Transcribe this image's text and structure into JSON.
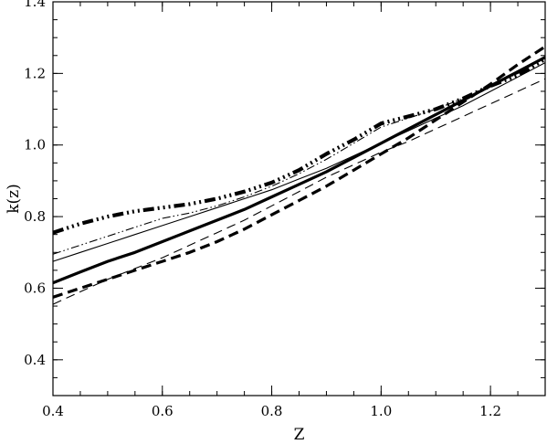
{
  "chart_data": {
    "type": "line",
    "title": "",
    "xlabel": "Z",
    "ylabel": "k(z)",
    "xlim": [
      0.4,
      1.3
    ],
    "ylim": [
      0.3,
      1.4
    ],
    "grid": false,
    "legend": "none",
    "x_ticks": [
      0.4,
      0.6,
      0.8,
      1.0,
      1.2
    ],
    "x_tick_labels": [
      "0.4",
      "0.6",
      "0.8",
      "1.0",
      "1.2"
    ],
    "y_ticks": [
      0.4,
      0.6,
      0.8,
      1.0,
      1.2,
      1.4
    ],
    "y_tick_labels": [
      "0.4",
      "0.6",
      "0.8",
      "1.0",
      "1.2",
      "1.4"
    ],
    "series": [
      {
        "style": "thick-dash-dot-dot",
        "x": [
          0.4,
          0.45,
          0.5,
          0.55,
          0.6,
          0.65,
          0.7,
          0.75,
          0.8,
          0.85,
          0.9,
          0.95,
          1.0,
          1.05,
          1.1,
          1.15,
          1.2,
          1.25,
          1.3
        ],
        "y": [
          0.755,
          0.78,
          0.8,
          0.815,
          0.825,
          0.835,
          0.85,
          0.87,
          0.895,
          0.93,
          0.975,
          1.015,
          1.06,
          1.08,
          1.1,
          1.13,
          1.165,
          1.195,
          1.24
        ]
      },
      {
        "style": "thin-dash-dot-dot",
        "x": [
          0.4,
          0.45,
          0.5,
          0.55,
          0.6,
          0.65,
          0.7,
          0.75,
          0.8,
          0.85,
          0.9,
          0.95,
          1.0,
          1.05,
          1.1,
          1.15,
          1.2,
          1.25,
          1.3
        ],
        "y": [
          0.695,
          0.72,
          0.745,
          0.77,
          0.795,
          0.81,
          0.83,
          0.855,
          0.885,
          0.92,
          0.96,
          1.005,
          1.05,
          1.075,
          1.1,
          1.13,
          1.165,
          1.2,
          1.245
        ]
      },
      {
        "style": "thin-solid",
        "x": [
          0.4,
          0.45,
          0.5,
          0.55,
          0.6,
          0.65,
          0.7,
          0.75,
          0.8,
          0.85,
          0.9,
          0.95,
          1.0,
          1.05,
          1.1,
          1.15,
          1.2,
          1.25,
          1.3
        ],
        "y": [
          0.675,
          0.7,
          0.725,
          0.75,
          0.775,
          0.8,
          0.825,
          0.85,
          0.875,
          0.905,
          0.935,
          0.97,
          1.005,
          1.04,
          1.075,
          1.11,
          1.15,
          1.19,
          1.23
        ]
      },
      {
        "style": "thick-solid",
        "x": [
          0.4,
          0.45,
          0.5,
          0.55,
          0.6,
          0.65,
          0.7,
          0.75,
          0.8,
          0.85,
          0.9,
          0.95,
          1.0,
          1.05,
          1.1,
          1.15,
          1.2,
          1.25,
          1.3
        ],
        "y": [
          0.615,
          0.645,
          0.675,
          0.7,
          0.73,
          0.76,
          0.79,
          0.82,
          0.855,
          0.89,
          0.925,
          0.965,
          1.005,
          1.045,
          1.085,
          1.125,
          1.165,
          1.205,
          1.245
        ]
      },
      {
        "style": "thin-dash",
        "x": [
          0.4,
          0.45,
          0.5,
          0.55,
          0.6,
          0.65,
          0.7,
          0.75,
          0.8,
          0.85,
          0.9,
          0.95,
          1.0,
          1.05,
          1.1,
          1.15,
          1.2,
          1.25,
          1.3
        ],
        "y": [
          0.555,
          0.59,
          0.625,
          0.655,
          0.685,
          0.72,
          0.755,
          0.79,
          0.83,
          0.87,
          0.91,
          0.945,
          0.98,
          1.01,
          1.045,
          1.08,
          1.115,
          1.15,
          1.185
        ]
      },
      {
        "style": "thick-dash",
        "x": [
          0.4,
          0.45,
          0.5,
          0.55,
          0.6,
          0.65,
          0.7,
          0.75,
          0.8,
          0.85,
          0.9,
          0.95,
          1.0,
          1.05,
          1.1,
          1.15,
          1.2,
          1.25,
          1.3
        ],
        "y": [
          0.575,
          0.6,
          0.625,
          0.65,
          0.675,
          0.7,
          0.73,
          0.765,
          0.805,
          0.845,
          0.885,
          0.93,
          0.975,
          1.02,
          1.07,
          1.12,
          1.17,
          1.225,
          1.275
        ]
      }
    ]
  }
}
